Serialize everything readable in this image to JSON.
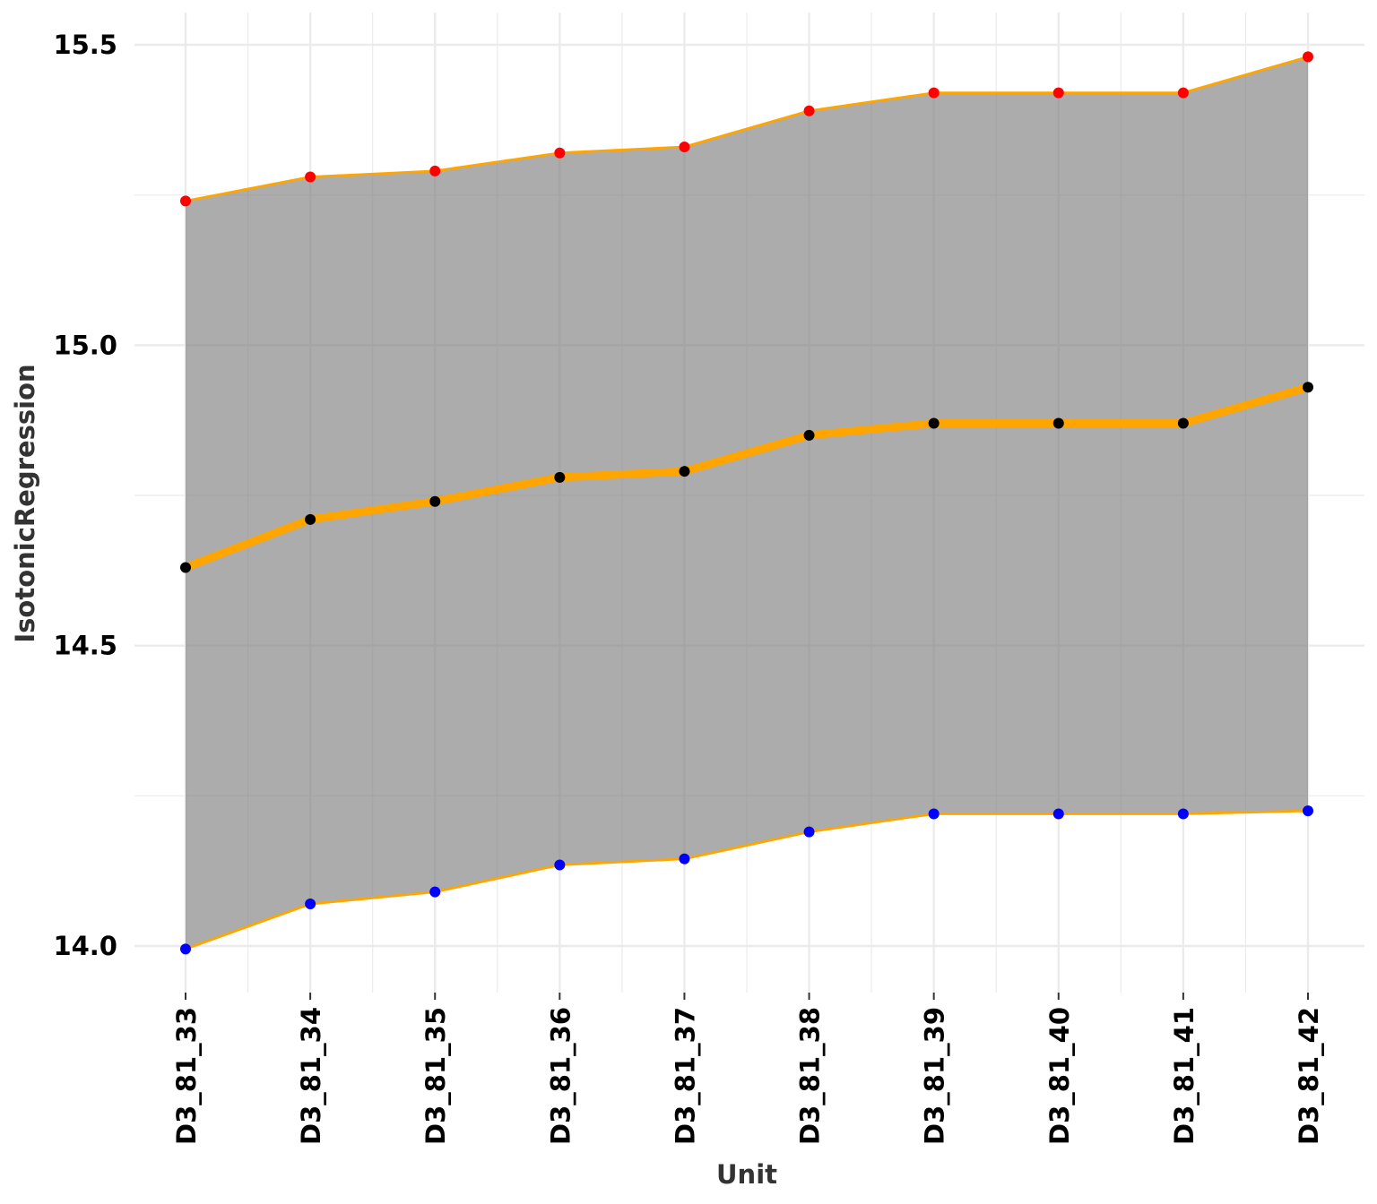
{
  "chart_data": {
    "type": "area",
    "title": "",
    "xlabel": "Unit",
    "ylabel": "IsotonicRegression",
    "categories": [
      "D3_81_33",
      "D3_81_34",
      "D3_81_35",
      "D3_81_36",
      "D3_81_37",
      "D3_81_38",
      "D3_81_39",
      "D3_81_40",
      "D3_81_41",
      "D3_81_42"
    ],
    "ylim": [
      13.94,
      15.56
    ],
    "yticks": [
      14.0,
      14.5,
      15.0,
      15.5
    ],
    "ytick_labels": [
      "14.0",
      "14.5",
      "15.0",
      "15.5"
    ],
    "series": [
      {
        "role": "upper",
        "values": [
          15.24,
          15.28,
          15.29,
          15.32,
          15.33,
          15.39,
          15.42,
          15.42,
          15.42,
          15.48
        ],
        "line_color": "#FFA500",
        "point_color": "#FF0000"
      },
      {
        "role": "center",
        "values": [
          14.63,
          14.71,
          14.74,
          14.78,
          14.79,
          14.85,
          14.87,
          14.87,
          14.87,
          14.93
        ],
        "line_color": "#FFA500",
        "point_color": "#000000"
      },
      {
        "role": "lower",
        "values": [
          13.995,
          14.07,
          14.09,
          14.135,
          14.145,
          14.19,
          14.22,
          14.22,
          14.22,
          14.225
        ],
        "line_color": "#FFA500",
        "point_color": "#0000FF"
      }
    ],
    "band_fill": "#808080",
    "band_opacity": 0.65,
    "grid": true,
    "grid_color": "#EBEBEB",
    "legend": "none"
  }
}
